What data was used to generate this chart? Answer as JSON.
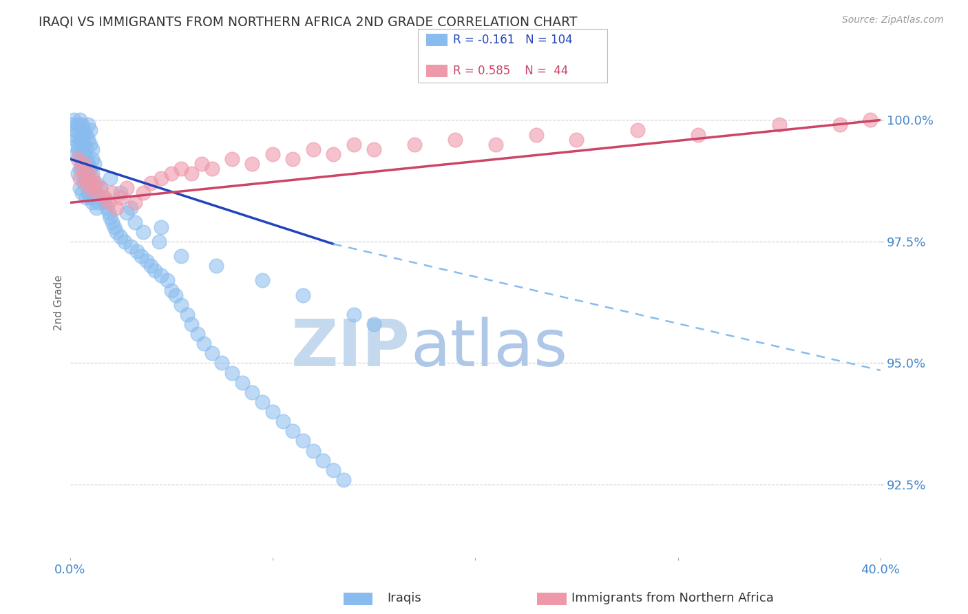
{
  "title": "IRAQI VS IMMIGRANTS FROM NORTHERN AFRICA 2ND GRADE CORRELATION CHART",
  "source_text": "Source: ZipAtlas.com",
  "ylabel_left": "2nd Grade",
  "xlim": [
    0.0,
    40.0
  ],
  "ylim": [
    91.0,
    101.5
  ],
  "yticks": [
    92.5,
    95.0,
    97.5,
    100.0
  ],
  "ytick_labels": [
    "92.5%",
    "95.0%",
    "97.5%",
    "100.0%"
  ],
  "xtick_positions": [
    0.0,
    10.0,
    20.0,
    30.0,
    40.0
  ],
  "xtick_labels": [
    "0.0%",
    "",
    "",
    "",
    "40.0%"
  ],
  "blue_color": "#88bbee",
  "pink_color": "#ee99aa",
  "blue_line_color": "#2244bb",
  "pink_line_color": "#cc4466",
  "dashed_line_color": "#88bbee",
  "legend_r_blue": "-0.161",
  "legend_n_blue": "104",
  "legend_r_pink": "0.585",
  "legend_n_pink": "44",
  "watermark_zip": "ZIP",
  "watermark_atlas": "atlas",
  "watermark_color_zip": "#c5d9ee",
  "watermark_color_atlas": "#b0c8e8",
  "background_color": "#ffffff",
  "grid_color": "#cccccc",
  "blue_scatter_x": [
    0.1,
    0.2,
    0.3,
    0.4,
    0.5,
    0.6,
    0.7,
    0.8,
    0.9,
    1.0,
    0.2,
    0.3,
    0.4,
    0.5,
    0.6,
    0.7,
    0.8,
    0.9,
    1.0,
    1.1,
    0.3,
    0.4,
    0.5,
    0.6,
    0.7,
    0.8,
    0.9,
    1.0,
    1.1,
    1.2,
    0.4,
    0.5,
    0.6,
    0.7,
    0.8,
    0.9,
    1.0,
    1.1,
    1.2,
    1.3,
    0.5,
    0.6,
    0.7,
    0.8,
    0.9,
    1.0,
    1.1,
    1.2,
    1.3,
    1.4,
    1.5,
    1.6,
    1.7,
    1.8,
    1.9,
    2.0,
    2.1,
    2.2,
    2.3,
    2.5,
    2.7,
    3.0,
    3.3,
    3.5,
    3.8,
    4.0,
    4.2,
    4.5,
    4.8,
    5.0,
    5.2,
    5.5,
    5.8,
    6.0,
    6.3,
    6.6,
    7.0,
    7.5,
    8.0,
    8.5,
    9.0,
    9.5,
    10.0,
    10.5,
    11.0,
    11.5,
    12.0,
    12.5,
    13.0,
    13.5,
    2.8,
    3.2,
    3.6,
    4.4,
    5.5,
    7.2,
    9.5,
    11.5,
    14.0,
    15.0,
    2.0,
    2.5,
    3.0,
    4.5
  ],
  "blue_scatter_y": [
    99.9,
    100.0,
    99.8,
    99.9,
    100.0,
    99.9,
    99.8,
    99.7,
    99.9,
    99.8,
    99.7,
    99.6,
    99.5,
    99.6,
    99.7,
    99.5,
    99.4,
    99.6,
    99.5,
    99.4,
    99.3,
    99.4,
    99.3,
    99.2,
    99.3,
    99.2,
    99.1,
    99.0,
    99.2,
    99.1,
    98.9,
    99.0,
    99.1,
    98.8,
    98.9,
    98.8,
    98.7,
    98.9,
    98.6,
    98.7,
    98.6,
    98.5,
    98.7,
    98.4,
    98.5,
    98.4,
    98.3,
    98.5,
    98.2,
    98.3,
    98.6,
    98.4,
    98.3,
    98.2,
    98.1,
    98.0,
    97.9,
    97.8,
    97.7,
    97.6,
    97.5,
    97.4,
    97.3,
    97.2,
    97.1,
    97.0,
    96.9,
    96.8,
    96.7,
    96.5,
    96.4,
    96.2,
    96.0,
    95.8,
    95.6,
    95.4,
    95.2,
    95.0,
    94.8,
    94.6,
    94.4,
    94.2,
    94.0,
    93.8,
    93.6,
    93.4,
    93.2,
    93.0,
    92.8,
    92.6,
    98.1,
    97.9,
    97.7,
    97.5,
    97.2,
    97.0,
    96.7,
    96.4,
    96.0,
    95.8,
    98.8,
    98.5,
    98.2,
    97.8
  ],
  "pink_scatter_x": [
    0.4,
    0.5,
    0.6,
    0.7,
    0.8,
    0.9,
    1.0,
    1.1,
    1.2,
    1.3,
    1.5,
    1.7,
    1.9,
    2.1,
    2.3,
    2.5,
    2.8,
    3.2,
    3.6,
    4.0,
    4.5,
    5.0,
    5.5,
    6.0,
    6.5,
    7.0,
    8.0,
    9.0,
    10.0,
    11.0,
    12.0,
    13.0,
    14.0,
    15.0,
    17.0,
    19.0,
    21.0,
    23.0,
    25.0,
    28.0,
    31.0,
    35.0,
    38.0,
    39.5
  ],
  "pink_scatter_y": [
    99.2,
    98.8,
    99.0,
    99.1,
    98.7,
    98.9,
    98.6,
    98.8,
    98.7,
    98.5,
    98.6,
    98.4,
    98.3,
    98.5,
    98.2,
    98.4,
    98.6,
    98.3,
    98.5,
    98.7,
    98.8,
    98.9,
    99.0,
    98.9,
    99.1,
    99.0,
    99.2,
    99.1,
    99.3,
    99.2,
    99.4,
    99.3,
    99.5,
    99.4,
    99.5,
    99.6,
    99.5,
    99.7,
    99.6,
    99.8,
    99.7,
    99.9,
    99.9,
    100.0
  ],
  "blue_trend_x1": 0.0,
  "blue_trend_y1": 99.2,
  "blue_trend_x2": 13.0,
  "blue_trend_y2": 97.45,
  "blue_dash_x1": 13.0,
  "blue_dash_y1": 97.45,
  "blue_dash_x2": 40.0,
  "blue_dash_y2": 94.85,
  "pink_trend_x1": 0.0,
  "pink_trend_y1": 98.3,
  "pink_trend_x2": 40.0,
  "pink_trend_y2": 100.0
}
